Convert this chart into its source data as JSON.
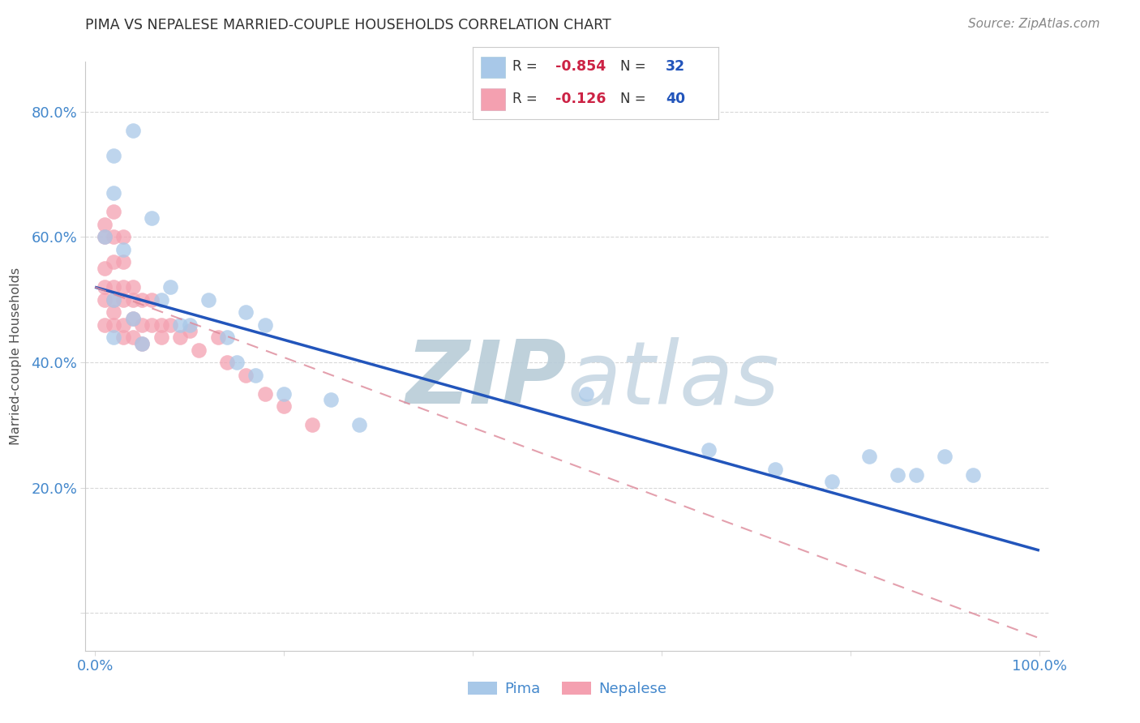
{
  "title": "PIMA VS NEPALESE MARRIED-COUPLE HOUSEHOLDS CORRELATION CHART",
  "source": "Source: ZipAtlas.com",
  "ylabel": "Married-couple Households",
  "xlim": [
    -0.01,
    1.01
  ],
  "ylim": [
    -0.06,
    0.88
  ],
  "pima_R": -0.854,
  "pima_N": 32,
  "nepalese_R": -0.126,
  "nepalese_N": 40,
  "pima_color": "#a8c8e8",
  "nepalese_color": "#f4a0b0",
  "pima_line_color": "#2255bb",
  "nepalese_line_color": "#dd8899",
  "background_color": "#ffffff",
  "grid_color": "#d8d8d8",
  "watermark_color": "#ccd8e8",
  "title_color": "#303030",
  "axis_label_color": "#505050",
  "tick_color": "#4488cc",
  "legend_R_color": "#cc2244",
  "legend_N_color": "#2255bb",
  "pima_x": [
    0.01,
    0.02,
    0.02,
    0.02,
    0.02,
    0.03,
    0.04,
    0.04,
    0.05,
    0.06,
    0.07,
    0.08,
    0.09,
    0.1,
    0.12,
    0.14,
    0.15,
    0.16,
    0.17,
    0.18,
    0.2,
    0.25,
    0.28,
    0.52,
    0.65,
    0.72,
    0.78,
    0.82,
    0.85,
    0.87,
    0.9,
    0.93
  ],
  "pima_y": [
    0.6,
    0.73,
    0.67,
    0.5,
    0.44,
    0.58,
    0.77,
    0.47,
    0.43,
    0.63,
    0.5,
    0.52,
    0.46,
    0.46,
    0.5,
    0.44,
    0.4,
    0.48,
    0.38,
    0.46,
    0.35,
    0.34,
    0.3,
    0.35,
    0.26,
    0.23,
    0.21,
    0.25,
    0.22,
    0.22,
    0.25,
    0.22
  ],
  "nepalese_x": [
    0.01,
    0.01,
    0.01,
    0.01,
    0.01,
    0.01,
    0.02,
    0.02,
    0.02,
    0.02,
    0.02,
    0.02,
    0.02,
    0.03,
    0.03,
    0.03,
    0.03,
    0.03,
    0.03,
    0.04,
    0.04,
    0.04,
    0.04,
    0.05,
    0.05,
    0.05,
    0.06,
    0.06,
    0.07,
    0.07,
    0.08,
    0.09,
    0.1,
    0.11,
    0.13,
    0.14,
    0.16,
    0.18,
    0.2,
    0.23
  ],
  "nepalese_y": [
    0.62,
    0.6,
    0.55,
    0.52,
    0.5,
    0.46,
    0.64,
    0.6,
    0.56,
    0.52,
    0.5,
    0.48,
    0.46,
    0.6,
    0.56,
    0.52,
    0.5,
    0.46,
    0.44,
    0.52,
    0.5,
    0.47,
    0.44,
    0.5,
    0.46,
    0.43,
    0.5,
    0.46,
    0.46,
    0.44,
    0.46,
    0.44,
    0.45,
    0.42,
    0.44,
    0.4,
    0.38,
    0.35,
    0.33,
    0.3
  ],
  "pima_line_x0": 0.0,
  "pima_line_y0": 0.52,
  "pima_line_x1": 1.0,
  "pima_line_y1": 0.1,
  "nep_line_x0": 0.0,
  "nep_line_y0": 0.52,
  "nep_line_x1": 1.0,
  "nep_line_y1": -0.04
}
